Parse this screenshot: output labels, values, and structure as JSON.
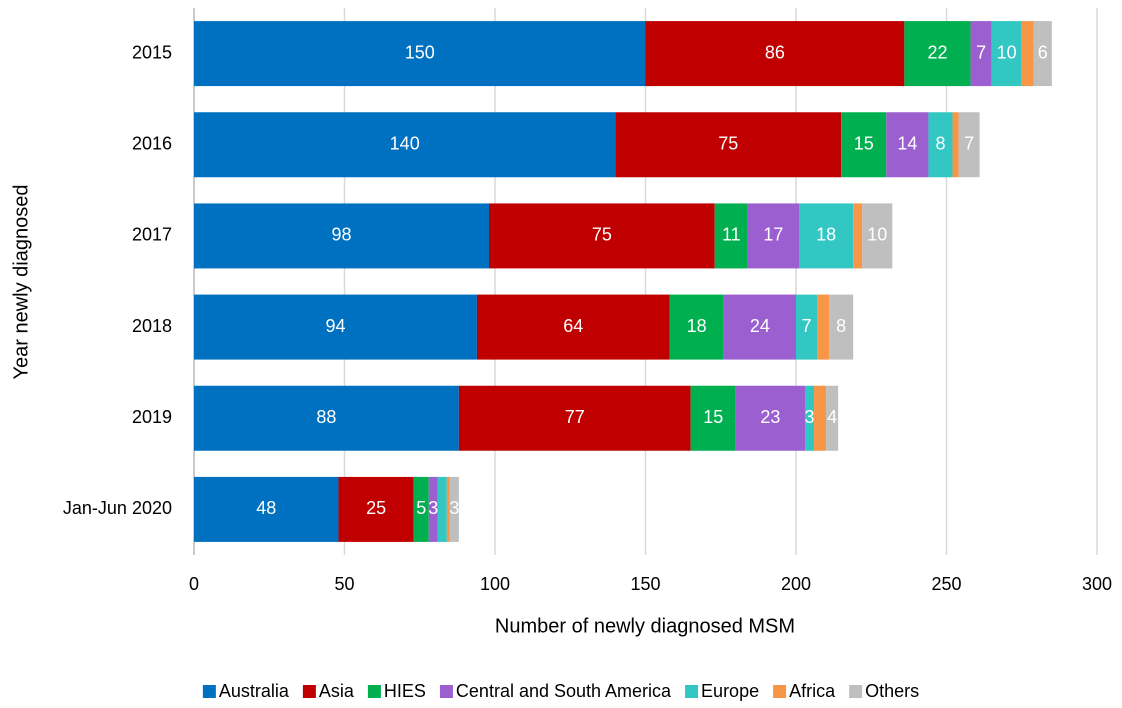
{
  "chart_data": {
    "type": "stacked_bar_horizontal",
    "x_label": "Number of newly diagnosed MSM",
    "y_label": "Year newly diagnosed",
    "categories": [
      "2015",
      "2016",
      "2017",
      "2018",
      "2019",
      "Jan-Jun 2020"
    ],
    "xlim": [
      0,
      300
    ],
    "xticks": [
      0,
      50,
      100,
      150,
      200,
      250,
      300
    ],
    "grid": true,
    "legend": "bottom",
    "series": [
      {
        "name": "Australia",
        "color": "#0070c0",
        "values": [
          150,
          140,
          98,
          94,
          88,
          48
        ],
        "value_labels": [
          "150",
          "140",
          "98",
          "94",
          "88",
          "48"
        ]
      },
      {
        "name": "Asia",
        "color": "#c00000",
        "values": [
          86,
          75,
          75,
          64,
          77,
          25
        ],
        "value_labels": [
          "86",
          "75",
          "75",
          "64",
          "77",
          "25"
        ]
      },
      {
        "name": "HIES",
        "color": "#00b050",
        "values": [
          22,
          15,
          11,
          18,
          15,
          5
        ],
        "value_labels": [
          "22",
          "15",
          "11",
          "18",
          "15",
          "5"
        ]
      },
      {
        "name": "Central and South America",
        "color": "#9c5fd0",
        "values": [
          7,
          14,
          17,
          24,
          23,
          3
        ],
        "value_labels": [
          "7",
          "14",
          "17",
          "24",
          "23",
          "3"
        ]
      },
      {
        "name": "Europe",
        "color": "#33c7c4",
        "values": [
          10,
          8,
          18,
          7,
          3,
          3
        ],
        "value_labels": [
          "10",
          "8",
          "18",
          "7",
          "3",
          null
        ]
      },
      {
        "name": "Africa",
        "color": "#f79646",
        "values": [
          4,
          2,
          3,
          4,
          4,
          1
        ],
        "value_labels": [
          null,
          null,
          null,
          null,
          null,
          null
        ]
      },
      {
        "name": "Others",
        "color": "#bfbfbf",
        "values": [
          6,
          7,
          10,
          8,
          4,
          3
        ],
        "value_labels": [
          "6",
          "7",
          "10",
          "8",
          "4",
          "3"
        ]
      }
    ]
  }
}
